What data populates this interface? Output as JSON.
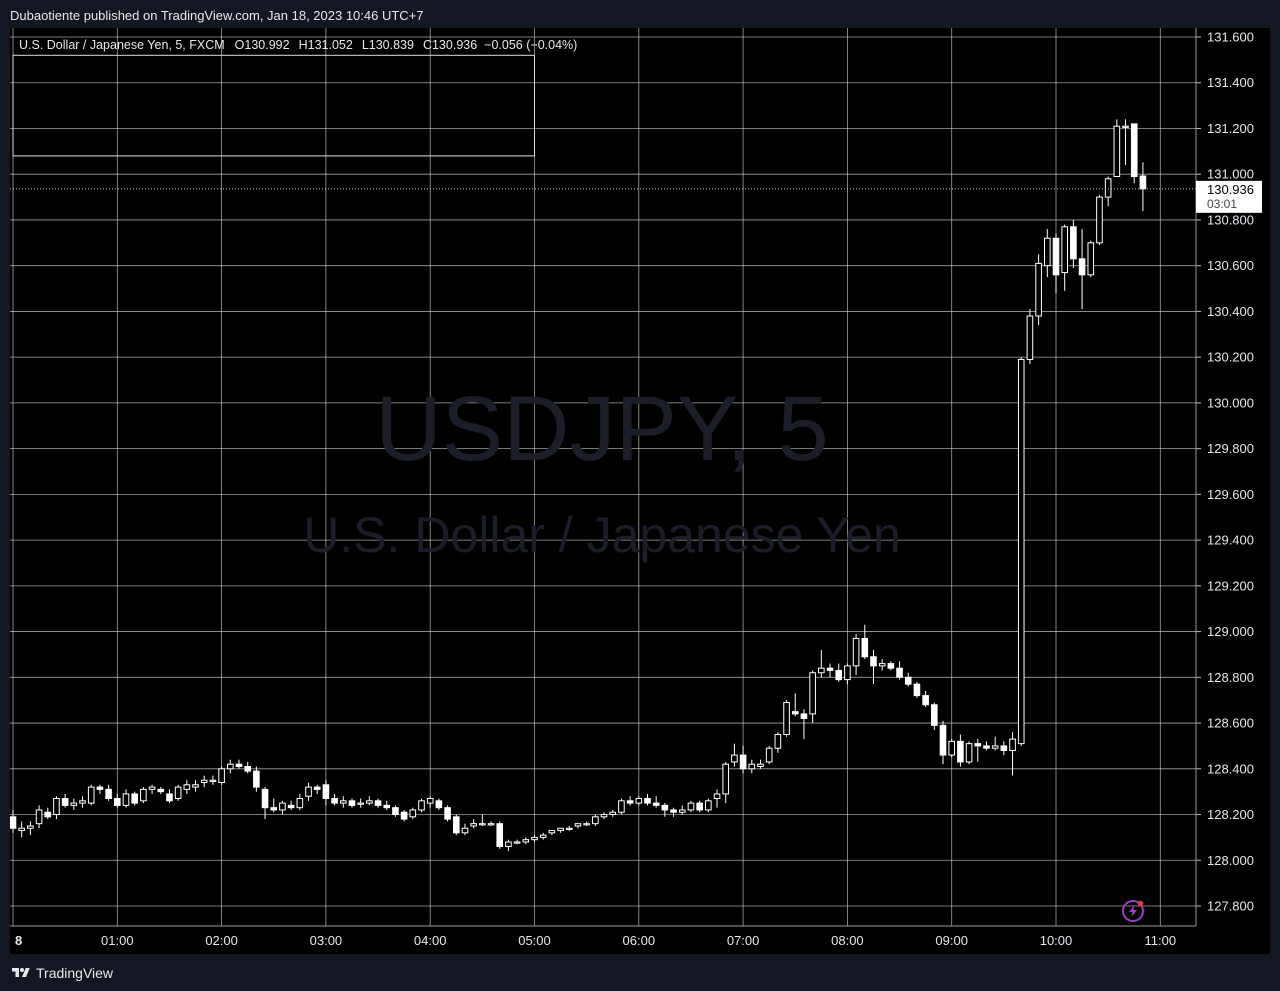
{
  "header": {
    "publish_line": "Dubaotiente published on TradingView.com, Jan 18, 2023 10:46 UTC+7"
  },
  "legend": {
    "symbol": "U.S. Dollar / Japanese Yen, 5, FXCM",
    "o_label": "O",
    "o_value": "130.992",
    "h_label": "H",
    "h_value": "131.052",
    "l_label": "L",
    "l_value": "130.839",
    "c_label": "C",
    "c_value": "130.936",
    "change": "−0.056 (−0.04%)"
  },
  "watermark": {
    "ticker": "USDJPY, 5",
    "name": "U.S. Dollar / Japanese Yen"
  },
  "last_price": {
    "price": "130.936",
    "countdown": "03:01",
    "value": 130.936
  },
  "footer": {
    "brand": "TradingView"
  },
  "colors": {
    "background": "#000000",
    "frame": "#131722",
    "grid": "#d9d9d9",
    "candle": "#ffffff",
    "text": "#e6e8ee"
  },
  "icons": {
    "footer_logo": "tradingview-logo-icon",
    "alert": "lightning-icon"
  },
  "chart_data": {
    "type": "candlestick",
    "title": "USDJPY, 5",
    "ylim": [
      127.7,
      131.65
    ],
    "y_ticks": [
      "127.800",
      "128.000",
      "128.200",
      "128.400",
      "128.600",
      "128.800",
      "129.000",
      "129.200",
      "129.400",
      "129.600",
      "129.800",
      "130.000",
      "130.200",
      "130.400",
      "130.600",
      "130.800",
      "131.000",
      "131.200",
      "131.400",
      "131.600"
    ],
    "x_ticks": [
      "8",
      "01:00",
      "02:00",
      "03:00",
      "04:00",
      "05:00",
      "06:00",
      "07:00",
      "08:00",
      "09:00",
      "10:00",
      "11:00"
    ],
    "rectangle": {
      "from_time": "00:00",
      "to_time": "05:00",
      "top": 131.52,
      "bottom": 131.08
    },
    "candles": [
      {
        "t": "00:00",
        "o": 128.19,
        "h": 128.22,
        "l": 128.12,
        "c": 128.14
      },
      {
        "t": "00:05",
        "o": 128.13,
        "h": 128.17,
        "l": 128.1,
        "c": 128.14
      },
      {
        "t": "00:10",
        "o": 128.14,
        "h": 128.17,
        "l": 128.11,
        "c": 128.15
      },
      {
        "t": "00:15",
        "o": 128.16,
        "h": 128.24,
        "l": 128.14,
        "c": 128.22
      },
      {
        "t": "00:20",
        "o": 128.21,
        "h": 128.23,
        "l": 128.18,
        "c": 128.19
      },
      {
        "t": "00:25",
        "o": 128.2,
        "h": 128.28,
        "l": 128.18,
        "c": 128.27
      },
      {
        "t": "00:30",
        "o": 128.27,
        "h": 128.29,
        "l": 128.23,
        "c": 128.24
      },
      {
        "t": "00:35",
        "o": 128.24,
        "h": 128.27,
        "l": 128.22,
        "c": 128.25
      },
      {
        "t": "00:40",
        "o": 128.25,
        "h": 128.28,
        "l": 128.23,
        "c": 128.26
      },
      {
        "t": "00:45",
        "o": 128.25,
        "h": 128.33,
        "l": 128.24,
        "c": 128.32
      },
      {
        "t": "00:50",
        "o": 128.32,
        "h": 128.33,
        "l": 128.29,
        "c": 128.31
      },
      {
        "t": "00:55",
        "o": 128.31,
        "h": 128.33,
        "l": 128.26,
        "c": 128.27
      },
      {
        "t": "01:00",
        "o": 128.27,
        "h": 128.29,
        "l": 128.23,
        "c": 128.24
      },
      {
        "t": "01:05",
        "o": 128.24,
        "h": 128.31,
        "l": 128.23,
        "c": 128.29
      },
      {
        "t": "01:10",
        "o": 128.29,
        "h": 128.3,
        "l": 128.24,
        "c": 128.25
      },
      {
        "t": "01:15",
        "o": 128.26,
        "h": 128.32,
        "l": 128.25,
        "c": 128.31
      },
      {
        "t": "01:20",
        "o": 128.31,
        "h": 128.33,
        "l": 128.29,
        "c": 128.32
      },
      {
        "t": "01:25",
        "o": 128.31,
        "h": 128.32,
        "l": 128.29,
        "c": 128.3
      },
      {
        "t": "01:30",
        "o": 128.29,
        "h": 128.31,
        "l": 128.25,
        "c": 128.26
      },
      {
        "t": "01:35",
        "o": 128.27,
        "h": 128.33,
        "l": 128.26,
        "c": 128.32
      },
      {
        "t": "01:40",
        "o": 128.31,
        "h": 128.35,
        "l": 128.29,
        "c": 128.33
      },
      {
        "t": "01:45",
        "o": 128.32,
        "h": 128.35,
        "l": 128.3,
        "c": 128.33
      },
      {
        "t": "01:50",
        "o": 128.34,
        "h": 128.37,
        "l": 128.32,
        "c": 128.35
      },
      {
        "t": "01:55",
        "o": 128.35,
        "h": 128.37,
        "l": 128.33,
        "c": 128.35
      },
      {
        "t": "02:00",
        "o": 128.34,
        "h": 128.41,
        "l": 128.33,
        "c": 128.4
      },
      {
        "t": "02:05",
        "o": 128.4,
        "h": 128.44,
        "l": 128.38,
        "c": 128.42
      },
      {
        "t": "02:10",
        "o": 128.42,
        "h": 128.44,
        "l": 128.4,
        "c": 128.41
      },
      {
        "t": "02:15",
        "o": 128.41,
        "h": 128.43,
        "l": 128.38,
        "c": 128.39
      },
      {
        "t": "02:20",
        "o": 128.39,
        "h": 128.41,
        "l": 128.3,
        "c": 128.32
      },
      {
        "t": "02:25",
        "o": 128.31,
        "h": 128.32,
        "l": 128.18,
        "c": 128.23
      },
      {
        "t": "02:30",
        "o": 128.23,
        "h": 128.27,
        "l": 128.21,
        "c": 128.22
      },
      {
        "t": "02:35",
        "o": 128.22,
        "h": 128.26,
        "l": 128.2,
        "c": 128.25
      },
      {
        "t": "02:40",
        "o": 128.24,
        "h": 128.26,
        "l": 128.22,
        "c": 128.23
      },
      {
        "t": "02:45",
        "o": 128.23,
        "h": 128.29,
        "l": 128.22,
        "c": 128.27
      },
      {
        "t": "02:50",
        "o": 128.28,
        "h": 128.34,
        "l": 128.26,
        "c": 128.32
      },
      {
        "t": "02:55",
        "o": 128.32,
        "h": 128.33,
        "l": 128.29,
        "c": 128.31
      },
      {
        "t": "03:00",
        "o": 128.33,
        "h": 128.35,
        "l": 128.24,
        "c": 128.27
      },
      {
        "t": "03:05",
        "o": 128.27,
        "h": 128.29,
        "l": 128.24,
        "c": 128.25
      },
      {
        "t": "03:10",
        "o": 128.25,
        "h": 128.28,
        "l": 128.23,
        "c": 128.26
      },
      {
        "t": "03:15",
        "o": 128.26,
        "h": 128.27,
        "l": 128.23,
        "c": 128.24
      },
      {
        "t": "03:20",
        "o": 128.25,
        "h": 128.27,
        "l": 128.23,
        "c": 128.25
      },
      {
        "t": "03:25",
        "o": 128.25,
        "h": 128.28,
        "l": 128.24,
        "c": 128.26
      },
      {
        "t": "03:30",
        "o": 128.26,
        "h": 128.27,
        "l": 128.23,
        "c": 128.24
      },
      {
        "t": "03:35",
        "o": 128.24,
        "h": 128.26,
        "l": 128.22,
        "c": 128.23
      },
      {
        "t": "03:40",
        "o": 128.23,
        "h": 128.24,
        "l": 128.19,
        "c": 128.2
      },
      {
        "t": "03:45",
        "o": 128.21,
        "h": 128.22,
        "l": 128.17,
        "c": 128.18
      },
      {
        "t": "03:50",
        "o": 128.19,
        "h": 128.23,
        "l": 128.18,
        "c": 128.22
      },
      {
        "t": "03:55",
        "o": 128.22,
        "h": 128.27,
        "l": 128.21,
        "c": 128.26
      },
      {
        "t": "04:00",
        "o": 128.25,
        "h": 128.28,
        "l": 128.23,
        "c": 128.27
      },
      {
        "t": "04:05",
        "o": 128.26,
        "h": 128.27,
        "l": 128.22,
        "c": 128.23
      },
      {
        "t": "04:10",
        "o": 128.23,
        "h": 128.24,
        "l": 128.17,
        "c": 128.18
      },
      {
        "t": "04:15",
        "o": 128.19,
        "h": 128.2,
        "l": 128.11,
        "c": 128.12
      },
      {
        "t": "04:20",
        "o": 128.12,
        "h": 128.16,
        "l": 128.11,
        "c": 128.14
      },
      {
        "t": "04:25",
        "o": 128.15,
        "h": 128.18,
        "l": 128.14,
        "c": 128.16
      },
      {
        "t": "04:30",
        "o": 128.16,
        "h": 128.2,
        "l": 128.15,
        "c": 128.16
      },
      {
        "t": "04:35",
        "o": 128.16,
        "h": 128.17,
        "l": 128.15,
        "c": 128.16
      },
      {
        "t": "04:40",
        "o": 128.16,
        "h": 128.17,
        "l": 128.05,
        "c": 128.06
      },
      {
        "t": "04:45",
        "o": 128.06,
        "h": 128.09,
        "l": 128.04,
        "c": 128.08
      },
      {
        "t": "04:50",
        "o": 128.08,
        "h": 128.09,
        "l": 128.07,
        "c": 128.08
      },
      {
        "t": "04:55",
        "o": 128.08,
        "h": 128.1,
        "l": 128.07,
        "c": 128.09
      },
      {
        "t": "05:00",
        "o": 128.09,
        "h": 128.11,
        "l": 128.08,
        "c": 128.1
      },
      {
        "t": "05:05",
        "o": 128.1,
        "h": 128.12,
        "l": 128.09,
        "c": 128.11
      },
      {
        "t": "05:10",
        "o": 128.12,
        "h": 128.13,
        "l": 128.11,
        "c": 128.13
      },
      {
        "t": "05:15",
        "o": 128.13,
        "h": 128.14,
        "l": 128.12,
        "c": 128.14
      },
      {
        "t": "05:20",
        "o": 128.14,
        "h": 128.15,
        "l": 128.13,
        "c": 128.14
      },
      {
        "t": "05:25",
        "o": 128.15,
        "h": 128.16,
        "l": 128.14,
        "c": 128.16
      },
      {
        "t": "05:30",
        "o": 128.16,
        "h": 128.17,
        "l": 128.15,
        "c": 128.16
      },
      {
        "t": "05:35",
        "o": 128.16,
        "h": 128.2,
        "l": 128.15,
        "c": 128.19
      },
      {
        "t": "05:40",
        "o": 128.19,
        "h": 128.21,
        "l": 128.18,
        "c": 128.2
      },
      {
        "t": "05:45",
        "o": 128.2,
        "h": 128.22,
        "l": 128.19,
        "c": 128.21
      },
      {
        "t": "05:50",
        "o": 128.21,
        "h": 128.27,
        "l": 128.2,
        "c": 128.26
      },
      {
        "t": "05:55",
        "o": 128.26,
        "h": 128.28,
        "l": 128.24,
        "c": 128.25
      },
      {
        "t": "06:00",
        "o": 128.25,
        "h": 128.28,
        "l": 128.24,
        "c": 128.27
      },
      {
        "t": "06:05",
        "o": 128.27,
        "h": 128.29,
        "l": 128.24,
        "c": 128.25
      },
      {
        "t": "06:10",
        "o": 128.25,
        "h": 128.28,
        "l": 128.23,
        "c": 128.24
      },
      {
        "t": "06:15",
        "o": 128.24,
        "h": 128.25,
        "l": 128.19,
        "c": 128.22
      },
      {
        "t": "06:20",
        "o": 128.22,
        "h": 128.23,
        "l": 128.19,
        "c": 128.21
      },
      {
        "t": "06:25",
        "o": 128.21,
        "h": 128.24,
        "l": 128.2,
        "c": 128.22
      },
      {
        "t": "06:30",
        "o": 128.22,
        "h": 128.26,
        "l": 128.21,
        "c": 128.25
      },
      {
        "t": "06:35",
        "o": 128.25,
        "h": 128.26,
        "l": 128.21,
        "c": 128.22
      },
      {
        "t": "06:40",
        "o": 128.22,
        "h": 128.27,
        "l": 128.21,
        "c": 128.26
      },
      {
        "t": "06:45",
        "o": 128.27,
        "h": 128.31,
        "l": 128.23,
        "c": 128.29
      },
      {
        "t": "06:50",
        "o": 128.29,
        "h": 128.43,
        "l": 128.25,
        "c": 128.42
      },
      {
        "t": "06:55",
        "o": 128.43,
        "h": 128.51,
        "l": 128.41,
        "c": 128.46
      },
      {
        "t": "07:00",
        "o": 128.46,
        "h": 128.5,
        "l": 128.38,
        "c": 128.4
      },
      {
        "t": "07:05",
        "o": 128.4,
        "h": 128.44,
        "l": 128.38,
        "c": 128.42
      },
      {
        "t": "07:10",
        "o": 128.41,
        "h": 128.44,
        "l": 128.4,
        "c": 128.42
      },
      {
        "t": "07:15",
        "o": 128.43,
        "h": 128.5,
        "l": 128.42,
        "c": 128.49
      },
      {
        "t": "07:20",
        "o": 128.49,
        "h": 128.56,
        "l": 128.47,
        "c": 128.55
      },
      {
        "t": "07:25",
        "o": 128.55,
        "h": 128.7,
        "l": 128.54,
        "c": 128.69
      },
      {
        "t": "07:30",
        "o": 128.65,
        "h": 128.73,
        "l": 128.63,
        "c": 128.64
      },
      {
        "t": "07:35",
        "o": 128.64,
        "h": 128.66,
        "l": 128.53,
        "c": 128.62
      },
      {
        "t": "07:40",
        "o": 128.64,
        "h": 128.83,
        "l": 128.6,
        "c": 128.82
      },
      {
        "t": "07:45",
        "o": 128.82,
        "h": 128.92,
        "l": 128.8,
        "c": 128.84
      },
      {
        "t": "07:50",
        "o": 128.84,
        "h": 128.86,
        "l": 128.8,
        "c": 128.83
      },
      {
        "t": "07:55",
        "o": 128.83,
        "h": 128.86,
        "l": 128.78,
        "c": 128.79
      },
      {
        "t": "08:00",
        "o": 128.79,
        "h": 128.86,
        "l": 128.77,
        "c": 128.85
      },
      {
        "t": "08:05",
        "o": 128.85,
        "h": 128.99,
        "l": 128.81,
        "c": 128.97
      },
      {
        "t": "08:10",
        "o": 128.97,
        "h": 129.03,
        "l": 128.88,
        "c": 128.89
      },
      {
        "t": "08:15",
        "o": 128.89,
        "h": 128.92,
        "l": 128.77,
        "c": 128.85
      },
      {
        "t": "08:20",
        "o": 128.85,
        "h": 128.88,
        "l": 128.83,
        "c": 128.86
      },
      {
        "t": "08:25",
        "o": 128.86,
        "h": 128.87,
        "l": 128.83,
        "c": 128.84
      },
      {
        "t": "08:30",
        "o": 128.84,
        "h": 128.87,
        "l": 128.79,
        "c": 128.8
      },
      {
        "t": "08:35",
        "o": 128.8,
        "h": 128.82,
        "l": 128.76,
        "c": 128.77
      },
      {
        "t": "08:40",
        "o": 128.77,
        "h": 128.78,
        "l": 128.71,
        "c": 128.72
      },
      {
        "t": "08:45",
        "o": 128.72,
        "h": 128.74,
        "l": 128.67,
        "c": 128.68
      },
      {
        "t": "08:50",
        "o": 128.68,
        "h": 128.69,
        "l": 128.57,
        "c": 128.59
      },
      {
        "t": "08:55",
        "o": 128.59,
        "h": 128.61,
        "l": 128.42,
        "c": 128.46
      },
      {
        "t": "09:00",
        "o": 128.46,
        "h": 128.53,
        "l": 128.45,
        "c": 128.52
      },
      {
        "t": "09:05",
        "o": 128.52,
        "h": 128.55,
        "l": 128.41,
        "c": 128.43
      },
      {
        "t": "09:10",
        "o": 128.43,
        "h": 128.52,
        "l": 128.42,
        "c": 128.51
      },
      {
        "t": "09:15",
        "o": 128.51,
        "h": 128.53,
        "l": 128.43,
        "c": 128.5
      },
      {
        "t": "09:20",
        "o": 128.5,
        "h": 128.52,
        "l": 128.48,
        "c": 128.49
      },
      {
        "t": "09:25",
        "o": 128.49,
        "h": 128.54,
        "l": 128.48,
        "c": 128.5
      },
      {
        "t": "09:30",
        "o": 128.5,
        "h": 128.52,
        "l": 128.46,
        "c": 128.48
      },
      {
        "t": "09:35",
        "o": 128.48,
        "h": 128.56,
        "l": 128.37,
        "c": 128.53
      },
      {
        "t": "09:40",
        "o": 128.51,
        "h": 130.2,
        "l": 128.5,
        "c": 130.19
      },
      {
        "t": "09:45",
        "o": 130.19,
        "h": 130.41,
        "l": 130.17,
        "c": 130.38
      },
      {
        "t": "09:50",
        "o": 130.38,
        "h": 130.65,
        "l": 130.34,
        "c": 130.61
      },
      {
        "t": "09:55",
        "o": 130.6,
        "h": 130.76,
        "l": 130.55,
        "c": 130.72
      },
      {
        "t": "10:00",
        "o": 130.72,
        "h": 130.74,
        "l": 130.48,
        "c": 130.56
      },
      {
        "t": "10:05",
        "o": 130.57,
        "h": 130.78,
        "l": 130.49,
        "c": 130.77
      },
      {
        "t": "10:10",
        "o": 130.77,
        "h": 130.8,
        "l": 130.59,
        "c": 130.63
      },
      {
        "t": "10:15",
        "o": 130.63,
        "h": 130.76,
        "l": 130.41,
        "c": 130.56
      },
      {
        "t": "10:20",
        "o": 130.56,
        "h": 130.71,
        "l": 130.55,
        "c": 130.7
      },
      {
        "t": "10:25",
        "o": 130.7,
        "h": 130.91,
        "l": 130.69,
        "c": 130.9
      },
      {
        "t": "10:30",
        "o": 130.9,
        "h": 130.99,
        "l": 130.86,
        "c": 130.98
      },
      {
        "t": "10:35",
        "o": 130.99,
        "h": 131.24,
        "l": 130.99,
        "c": 131.21
      },
      {
        "t": "10:40",
        "o": 131.21,
        "h": 131.24,
        "l": 131.04,
        "c": 131.21
      },
      {
        "t": "10:45",
        "o": 131.22,
        "h": 131.22,
        "l": 130.96,
        "c": 130.99
      },
      {
        "t": "10:50",
        "o": 130.992,
        "h": 131.052,
        "l": 130.839,
        "c": 130.936
      }
    ]
  }
}
